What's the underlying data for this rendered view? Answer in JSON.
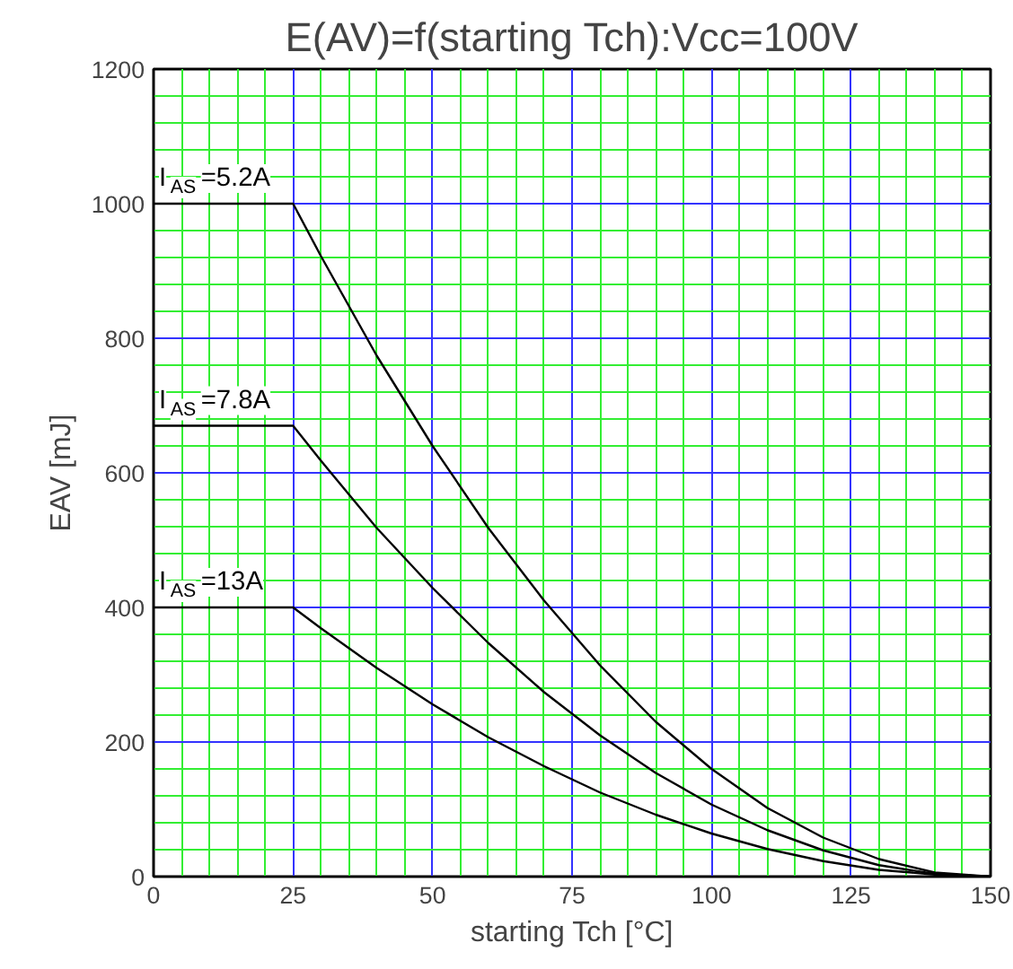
{
  "chart_data": {
    "type": "line",
    "title": "E(AV)=f(starting Tch):Vcc=100V",
    "xlabel": "starting Tch [°C]",
    "ylabel": "EAV [mJ]",
    "xlim": [
      0,
      150
    ],
    "ylim": [
      0,
      1200
    ],
    "xticks": [
      0,
      {
        "value": 5,
        "label": null
      },
      {
        "value": 10,
        "label": null
      },
      {
        "value": 15,
        "label": null
      },
      {
        "value": 20,
        "label": null
      },
      25,
      {
        "value": 30,
        "label": null
      },
      {
        "value": 35,
        "label": null
      },
      {
        "value": 40,
        "label": null
      },
      {
        "value": 45,
        "label": null
      },
      50,
      {
        "value": 55,
        "label": null
      },
      {
        "value": 60,
        "label": null
      },
      {
        "value": 65,
        "label": null
      },
      {
        "value": 70,
        "label": null
      },
      75,
      {
        "value": 80,
        "label": null
      },
      {
        "value": 85,
        "label": null
      },
      {
        "value": 90,
        "label": null
      },
      {
        "value": 95,
        "label": null
      },
      100,
      {
        "value": 105,
        "label": null
      },
      {
        "value": 110,
        "label": null
      },
      {
        "value": 115,
        "label": null
      },
      {
        "value": 120,
        "label": null
      },
      125,
      {
        "value": 130,
        "label": null
      },
      {
        "value": 135,
        "label": null
      },
      {
        "value": 140,
        "label": null
      },
      {
        "value": 145,
        "label": null
      },
      150
    ],
    "yticks": [
      0,
      {
        "value": 40,
        "label": null
      },
      {
        "value": 80,
        "label": null
      },
      {
        "value": 120,
        "label": null
      },
      {
        "value": 160,
        "label": null
      },
      200,
      {
        "value": 240,
        "label": null
      },
      {
        "value": 280,
        "label": null
      },
      {
        "value": 320,
        "label": null
      },
      {
        "value": 360,
        "label": null
      },
      400,
      {
        "value": 440,
        "label": null
      },
      {
        "value": 480,
        "label": null
      },
      {
        "value": 520,
        "label": null
      },
      {
        "value": 560,
        "label": null
      },
      600,
      {
        "value": 640,
        "label": null
      },
      {
        "value": 680,
        "label": null
      },
      {
        "value": 720,
        "label": null
      },
      {
        "value": 760,
        "label": null
      },
      800,
      {
        "value": 840,
        "label": null
      },
      {
        "value": 880,
        "label": null
      },
      {
        "value": 920,
        "label": null
      },
      {
        "value": 960,
        "label": null
      },
      1000,
      {
        "value": 1040,
        "label": null
      },
      {
        "value": 1080,
        "label": null
      },
      {
        "value": 1120,
        "label": null
      },
      {
        "value": 1160,
        "label": null
      },
      1200
    ],
    "x": [
      0,
      25,
      30,
      40,
      50,
      60,
      70,
      80,
      90,
      100,
      110,
      120,
      130,
      140,
      150
    ],
    "series": [
      {
        "color": "#000000",
        "values": [
          1000,
          1000,
          922,
          774,
          640,
          518,
          410,
          314,
          230,
          160,
          102,
          58,
          26,
          6,
          0
        ]
      },
      {
        "color": "#000000",
        "values": [
          670,
          670,
          618,
          518,
          429,
          347,
          274,
          210,
          154,
          107,
          69,
          39,
          17,
          4,
          0
        ]
      },
      {
        "color": "#000000",
        "values": [
          400,
          400,
          369,
          310,
          256,
          207,
          164,
          125,
          92,
          64,
          41,
          23,
          10,
          3,
          0
        ]
      }
    ],
    "annotations": [
      {
        "text": "I$_{AS}$=5.2A",
        "y": 1000
      },
      {
        "text": "I$_{AS}$=7.8A",
        "y": 670
      },
      {
        "text": "I$_{AS}$=13A",
        "y": 400
      }
    ],
    "grid": true,
    "line_style": "solid"
  }
}
